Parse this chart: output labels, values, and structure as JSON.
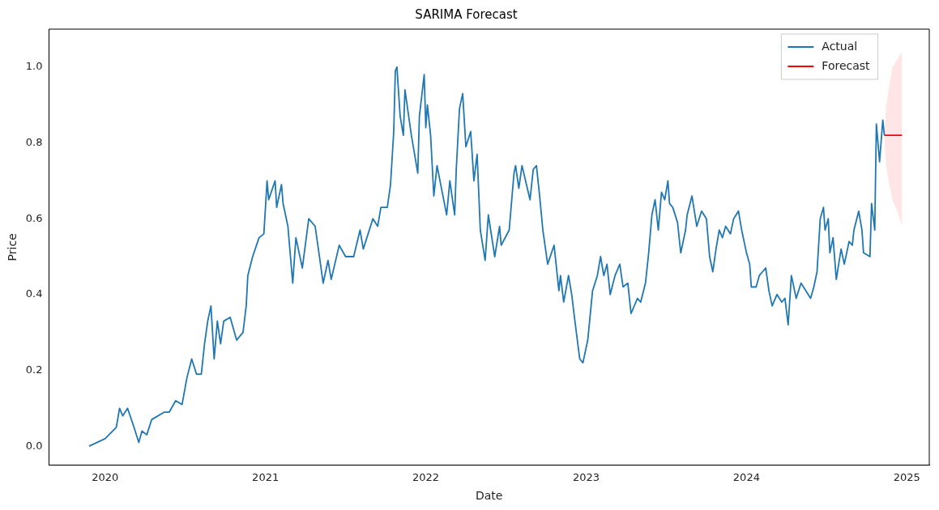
{
  "chart_data": {
    "type": "line",
    "title": "SARIMA Forecast",
    "xlabel": "Date",
    "ylabel": "Price",
    "xlim": [
      2019.65,
      2025.14
    ],
    "xticks": [
      2020,
      2021,
      2022,
      2023,
      2024,
      2025
    ],
    "ylim": [
      -0.05,
      1.1
    ],
    "yticks": [
      {
        "value": 0,
        "label": "0.0"
      },
      {
        "value": 0.2,
        "label": "0.2"
      },
      {
        "value": 0.4,
        "label": "0.4"
      },
      {
        "value": 0.6,
        "label": "0.6"
      },
      {
        "value": 0.8,
        "label": "0.8"
      },
      {
        "value": 1,
        "label": "1.0"
      }
    ],
    "grid": false,
    "legend": "top right",
    "marker": "none",
    "line_style": "solid",
    "series": [
      {
        "name": "Actual",
        "color": "#1f77b4",
        "x": [
          2019.9,
          2020.0,
          2020.07,
          2020.09,
          2020.11,
          2020.14,
          2020.18,
          2020.21,
          2020.23,
          2020.26,
          2020.29,
          2020.37,
          2020.4,
          2020.44,
          2020.48,
          2020.51,
          2020.54,
          2020.57,
          2020.6,
          2020.62,
          2020.64,
          2020.66,
          2020.68,
          2020.7,
          2020.72,
          2020.74,
          2020.78,
          2020.82,
          2020.86,
          2020.88,
          2020.89,
          2020.92,
          2020.96,
          2020.99,
          2021.01,
          2021.02,
          2021.06,
          2021.07,
          2021.1,
          2021.11,
          2021.14,
          2021.15,
          2021.17,
          2021.19,
          2021.23,
          2021.27,
          2021.31,
          2021.33,
          2021.36,
          2021.39,
          2021.41,
          2021.46,
          2021.5,
          2021.55,
          2021.59,
          2021.61,
          2021.67,
          2021.7,
          2021.72,
          2021.76,
          2021.78,
          2021.8,
          2021.81,
          2021.82,
          2021.84,
          2021.86,
          2021.87,
          2021.89,
          2021.91,
          2021.95,
          2021.96,
          2021.99,
          2022.0,
          2022.01,
          2022.03,
          2022.05,
          2022.07,
          2022.13,
          2022.15,
          2022.18,
          2022.19,
          2022.21,
          2022.23,
          2022.25,
          2022.28,
          2022.3,
          2022.32,
          2022.34,
          2022.37,
          2022.39,
          2022.43,
          2022.46,
          2022.47,
          2022.52,
          2022.55,
          2022.56,
          2022.58,
          2022.6,
          2022.65,
          2022.67,
          2022.69,
          2022.71,
          2022.73,
          2022.76,
          2022.8,
          2022.83,
          2022.84,
          2022.86,
          2022.89,
          2022.91,
          2022.93,
          2022.96,
          2022.98,
          2023.01,
          2023.04,
          2023.07,
          2023.09,
          2023.11,
          2023.13,
          2023.15,
          2023.18,
          2023.21,
          2023.23,
          2023.26,
          2023.28,
          2023.32,
          2023.34,
          2023.37,
          2023.39,
          2023.41,
          2023.43,
          2023.45,
          2023.47,
          2023.49,
          2023.51,
          2023.52,
          2023.54,
          2023.57,
          2023.59,
          2023.62,
          2023.63,
          2023.66,
          2023.69,
          2023.72,
          2023.75,
          2023.77,
          2023.79,
          2023.81,
          2023.83,
          2023.85,
          2023.87,
          2023.9,
          2023.92,
          2023.95,
          2023.97,
          2024.0,
          2024.02,
          2024.03,
          2024.06,
          2024.08,
          2024.1,
          2024.12,
          2024.14,
          2024.16,
          2024.19,
          2024.22,
          2024.24,
          2024.26,
          2024.28,
          2024.31,
          2024.34,
          2024.4,
          2024.42,
          2024.44,
          2024.46,
          2024.48,
          2024.49,
          2024.51,
          2024.52,
          2024.54,
          2024.56,
          2024.59,
          2024.61,
          2024.64,
          2024.66,
          2024.67,
          2024.7,
          2024.72,
          2024.73,
          2024.77,
          2024.78,
          2024.8,
          2024.81,
          2024.83,
          2024.85,
          2024.86
        ],
        "values": [
          0.0,
          0.02,
          0.05,
          0.1,
          0.08,
          0.1,
          0.05,
          0.01,
          0.04,
          0.03,
          0.07,
          0.09,
          0.09,
          0.12,
          0.11,
          0.18,
          0.23,
          0.19,
          0.19,
          0.27,
          0.33,
          0.37,
          0.23,
          0.33,
          0.27,
          0.33,
          0.34,
          0.28,
          0.3,
          0.37,
          0.45,
          0.5,
          0.55,
          0.56,
          0.7,
          0.65,
          0.7,
          0.63,
          0.69,
          0.64,
          0.58,
          0.53,
          0.43,
          0.55,
          0.47,
          0.6,
          0.58,
          0.52,
          0.43,
          0.49,
          0.44,
          0.53,
          0.5,
          0.5,
          0.57,
          0.52,
          0.6,
          0.58,
          0.63,
          0.63,
          0.69,
          0.83,
          0.99,
          1.0,
          0.87,
          0.82,
          0.94,
          0.88,
          0.82,
          0.72,
          0.87,
          0.98,
          0.84,
          0.9,
          0.82,
          0.66,
          0.74,
          0.61,
          0.7,
          0.61,
          0.73,
          0.89,
          0.93,
          0.79,
          0.83,
          0.7,
          0.77,
          0.57,
          0.49,
          0.61,
          0.5,
          0.58,
          0.53,
          0.57,
          0.72,
          0.74,
          0.68,
          0.74,
          0.65,
          0.73,
          0.74,
          0.66,
          0.57,
          0.48,
          0.53,
          0.41,
          0.45,
          0.38,
          0.45,
          0.4,
          0.33,
          0.23,
          0.22,
          0.28,
          0.41,
          0.45,
          0.5,
          0.45,
          0.48,
          0.4,
          0.45,
          0.48,
          0.42,
          0.43,
          0.35,
          0.39,
          0.38,
          0.43,
          0.51,
          0.61,
          0.65,
          0.57,
          0.67,
          0.65,
          0.7,
          0.64,
          0.63,
          0.59,
          0.51,
          0.57,
          0.61,
          0.66,
          0.58,
          0.62,
          0.6,
          0.5,
          0.46,
          0.52,
          0.57,
          0.55,
          0.58,
          0.56,
          0.6,
          0.62,
          0.57,
          0.51,
          0.48,
          0.42,
          0.42,
          0.45,
          0.46,
          0.47,
          0.41,
          0.37,
          0.4,
          0.38,
          0.39,
          0.32,
          0.45,
          0.39,
          0.43,
          0.39,
          0.42,
          0.46,
          0.6,
          0.63,
          0.57,
          0.6,
          0.51,
          0.55,
          0.44,
          0.52,
          0.48,
          0.54,
          0.53,
          0.57,
          0.62,
          0.57,
          0.51,
          0.5,
          0.64,
          0.57,
          0.85,
          0.75,
          0.86,
          0.82
        ]
      },
      {
        "name": "Forecast",
        "color": "#ff0000",
        "x": [
          2024.86,
          2024.87,
          2024.89,
          2024.91,
          2024.94,
          2024.97
        ],
        "values": [
          0.82,
          0.82,
          0.82,
          0.82,
          0.82,
          0.82
        ],
        "lower": [
          0.82,
          0.74,
          0.69,
          0.65,
          0.62,
          0.58
        ],
        "upper": [
          0.82,
          0.89,
          0.95,
          1.0,
          1.02,
          1.04
        ]
      }
    ]
  }
}
